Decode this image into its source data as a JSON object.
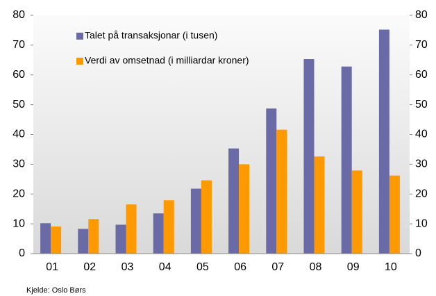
{
  "chart_data": {
    "type": "bar",
    "categories": [
      "01",
      "02",
      "03",
      "04",
      "05",
      "06",
      "07",
      "08",
      "09",
      "10"
    ],
    "series": [
      {
        "name": "Talet på transaksjonar (i tusen)",
        "color": "#6a6aa6",
        "values": [
          10.2,
          8.3,
          9.7,
          13.5,
          21.8,
          35.3,
          48.7,
          65.3,
          62.8,
          75.2
        ]
      },
      {
        "name": "Verdi av omsetnad (i milliardar kroner)",
        "color": "#ff9900",
        "values": [
          9.1,
          11.6,
          16.5,
          17.9,
          24.6,
          30.0,
          41.6,
          32.6,
          27.9,
          26.2
        ]
      }
    ],
    "ylim": [
      0,
      80
    ],
    "yticks": [
      0,
      10,
      20,
      30,
      40,
      50,
      60,
      70,
      80
    ],
    "y2lim": [
      0,
      80
    ],
    "y2ticks": [
      0,
      10,
      20,
      30,
      40,
      50,
      60,
      70,
      80
    ],
    "source": "Kjelde: Oslo Børs"
  }
}
